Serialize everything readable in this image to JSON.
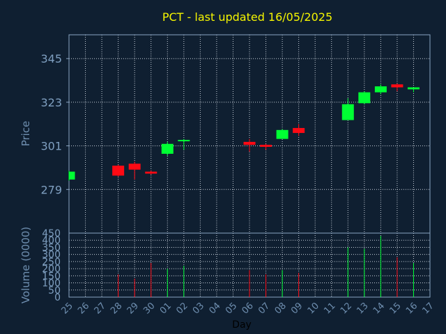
{
  "chart_data": {
    "type": "candlestick",
    "title": "PCT - last updated 16/05/2025",
    "xlabel": "Day",
    "price_axis": {
      "label": "Price",
      "ylim": [
        257,
        357
      ],
      "ticks": [
        279,
        301,
        323,
        345
      ]
    },
    "volume_axis": {
      "label": "Volume (0000)",
      "ylim": [
        0,
        450
      ],
      "ticks": [
        0,
        50,
        100,
        150,
        200,
        250,
        300,
        350,
        400,
        450
      ]
    },
    "grid": true,
    "x_labels": [
      "25",
      "26",
      "27",
      "28",
      "29",
      "30",
      "01",
      "02",
      "03",
      "04",
      "05",
      "06",
      "07",
      "08",
      "09",
      "10",
      "11",
      "12",
      "13",
      "14",
      "15",
      "16",
      "17"
    ],
    "candles": [
      {
        "day": "25",
        "open": 284,
        "close": 288,
        "high": 288.5,
        "low": 283.5,
        "volume": 0,
        "up": true
      },
      {
        "day": "28",
        "open": 291,
        "close": 286,
        "high": 291.5,
        "low": 285.5,
        "volume": 160,
        "up": false
      },
      {
        "day": "29",
        "open": 292,
        "close": 289,
        "high": 293,
        "low": 284,
        "volume": 130,
        "up": false
      },
      {
        "day": "30",
        "open": 288,
        "close": 287,
        "high": 288.5,
        "low": 286.5,
        "volume": 240,
        "up": false
      },
      {
        "day": "01",
        "open": 297,
        "close": 302,
        "high": 303,
        "low": 296,
        "volume": 200,
        "up": true
      },
      {
        "day": "02",
        "open": 303.5,
        "close": 304,
        "high": 304.5,
        "low": 299,
        "volume": 220,
        "up": true
      },
      {
        "day": "06",
        "open": 303,
        "close": 301.5,
        "high": 304.5,
        "low": 298,
        "volume": 190,
        "up": false
      },
      {
        "day": "07",
        "open": 301.5,
        "close": 300.5,
        "high": 302,
        "low": 299,
        "volume": 160,
        "up": false
      },
      {
        "day": "08",
        "open": 304.5,
        "close": 309,
        "high": 309.5,
        "low": 304.5,
        "volume": 190,
        "up": true
      },
      {
        "day": "09",
        "open": 310,
        "close": 307.5,
        "high": 312,
        "low": 306,
        "volume": 170,
        "up": false
      },
      {
        "day": "12",
        "open": 314,
        "close": 322,
        "high": 325,
        "low": 314,
        "volume": 350,
        "up": true
      },
      {
        "day": "13",
        "open": 322.5,
        "close": 328,
        "high": 328.5,
        "low": 322,
        "volume": 340,
        "up": true
      },
      {
        "day": "14",
        "open": 328,
        "close": 331,
        "high": 332,
        "low": 327,
        "volume": 430,
        "up": true
      },
      {
        "day": "15",
        "open": 332,
        "close": 330.5,
        "high": 332.5,
        "low": 328.5,
        "volume": 280,
        "up": false
      },
      {
        "day": "16",
        "open": 329.5,
        "close": 330.5,
        "high": 330.5,
        "low": 328,
        "volume": 240,
        "up": true
      }
    ]
  },
  "colors": {
    "background": "#0f1f31",
    "plot_border": "#8aa6c4",
    "grid": "#c8d0da",
    "up": "#00ff33",
    "down": "#ff0a14",
    "title": "#f5f500",
    "tick": "#7f9fc0"
  }
}
